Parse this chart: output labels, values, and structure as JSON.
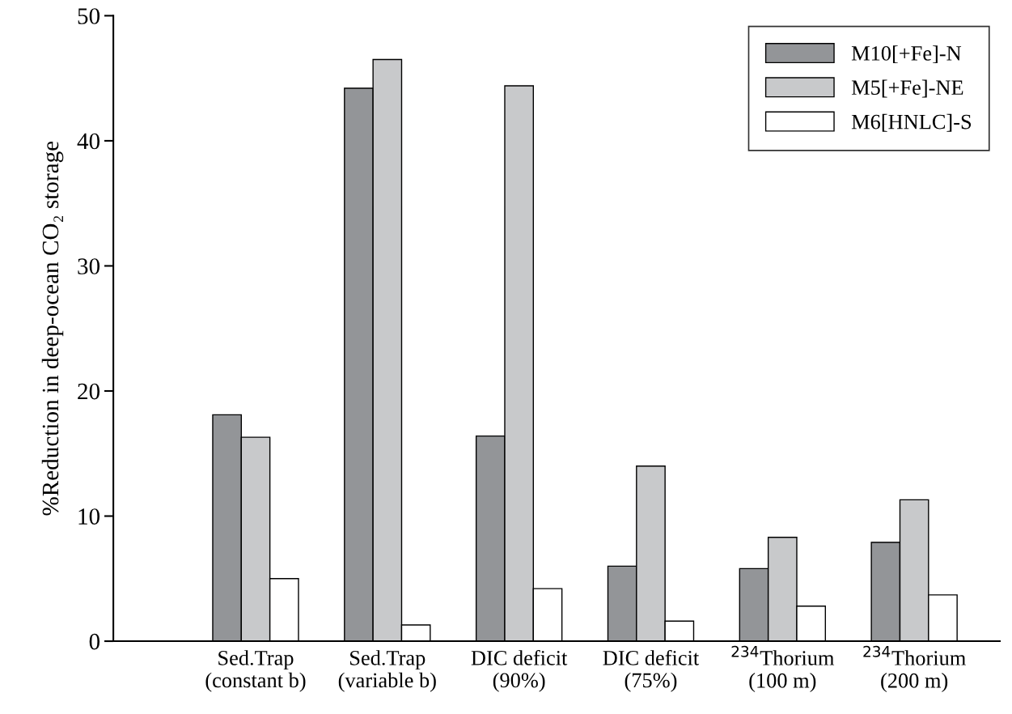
{
  "chart_data": {
    "type": "bar",
    "ylabel": "%Reduction in deep-ocean CO₂ storage",
    "categories": [
      "Sed.Trap\n(constant b)",
      "Sed.Trap\n(variable b)",
      "DIC deficit\n(90%)",
      "DIC deficit\n(75%)",
      "$^{234}$Thorium\n(100 m)",
      "$^{234}$Thorium\n(200 m)"
    ],
    "series": [
      {
        "name": "M10[+Fe]-N",
        "color": "#939598",
        "values": [
          18.1,
          44.2,
          16.4,
          6.0,
          5.8,
          7.9
        ]
      },
      {
        "name": "M5[+Fe]-NE",
        "color": "#c8c9cb",
        "values": [
          16.3,
          46.5,
          44.4,
          14.0,
          8.3,
          11.3
        ]
      },
      {
        "name": "M6[HNLC]-S",
        "color": "#ffffff",
        "values": [
          5.0,
          1.3,
          4.2,
          1.6,
          2.8,
          3.7
        ]
      }
    ],
    "ylim": [
      0,
      50
    ],
    "yticks": [
      0,
      10,
      20,
      30,
      40,
      50
    ],
    "grid": false,
    "legend": "top right"
  }
}
